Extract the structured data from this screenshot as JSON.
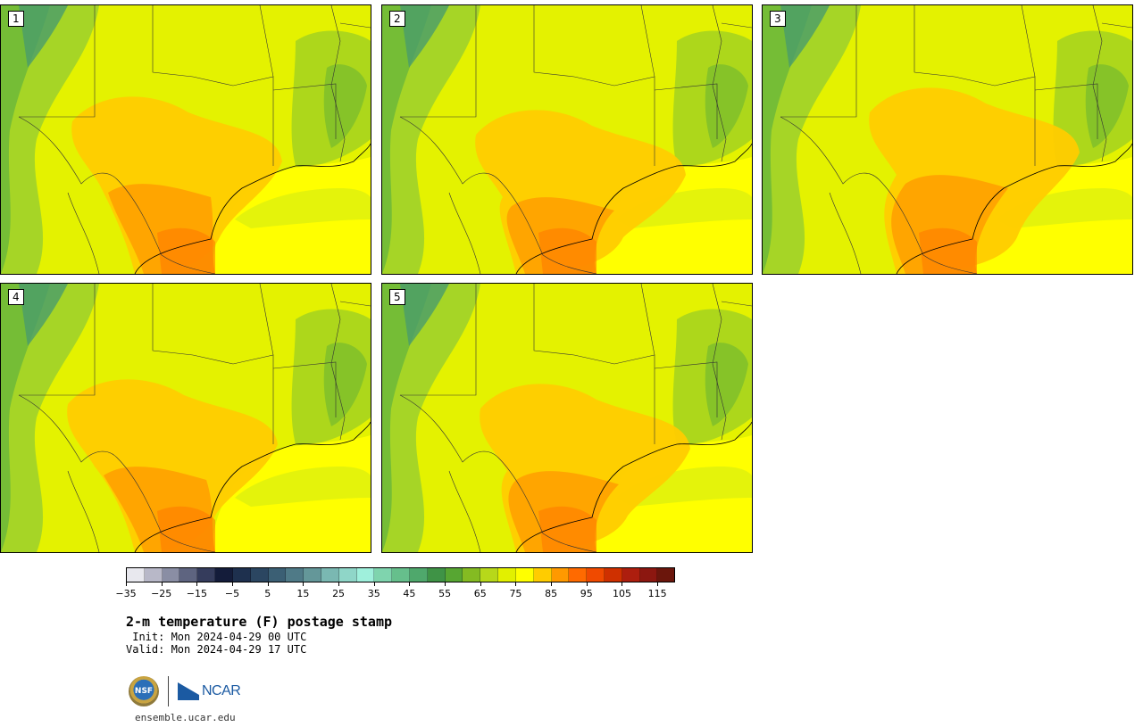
{
  "product_title": "2-m temperature (F) postage stamp",
  "init_text": " Init: Mon 2024-04-29 00 UTC",
  "valid_text": "Valid: Mon 2024-04-29 17 UTC",
  "website": "ensemble.ucar.edu",
  "logos": {
    "nsf": "NSF",
    "ncar": "NCAR"
  },
  "panels": [
    {
      "label": "1"
    },
    {
      "label": "2"
    },
    {
      "label": "3"
    },
    {
      "label": "4"
    },
    {
      "label": "5"
    }
  ],
  "colorbar": {
    "colors": [
      "#e8e8ee",
      "#b8b8c8",
      "#8a8ea4",
      "#5e6480",
      "#353c5c",
      "#141c3a",
      "#1e304e",
      "#2b4661",
      "#3b5f74",
      "#4f7a87",
      "#649799",
      "#7ab8b2",
      "#8fd6c8",
      "#9ff0dc",
      "#7fd4ae",
      "#66bf8c",
      "#4fa86c",
      "#3f9346",
      "#57a632",
      "#84bb22",
      "#b7d81a",
      "#e2f000",
      "#ffff00",
      "#ffcc00",
      "#ff9900",
      "#ff6a00",
      "#f04a00",
      "#cf3000",
      "#ad1e0e",
      "#8c1710",
      "#6b160c"
    ],
    "tick_labels": [
      "−35",
      "−25",
      "−15",
      "−5",
      "5",
      "15",
      "25",
      "35",
      "45",
      "55",
      "65",
      "75",
      "85",
      "95",
      "105",
      "115"
    ]
  }
}
